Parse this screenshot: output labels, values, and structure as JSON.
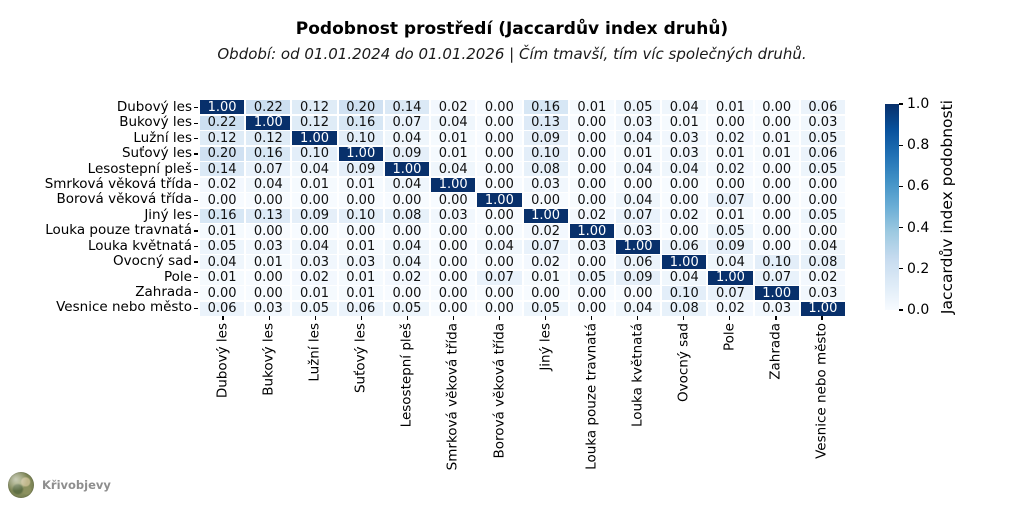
{
  "title": "Podobnost prostředí (Jaccardův index druhů)",
  "subtitle": "Období: od 01.01.2024 do 01.01.2026  |  Čím tmavší, tím víc společných druhů.",
  "watermark": "Křivobjevy",
  "chart_data": {
    "type": "heatmap",
    "title": "Podobnost prostředí (Jaccardův index druhů)",
    "subtitle": "Období: od 01.01.2024 do 01.01.2026 | Čím tmavší, tím víc společných druhů.",
    "categories": [
      "Dubový les",
      "Bukový les",
      "Lužní les",
      "Suťový les",
      "Lesostepní pleš",
      "Smrková věková třída",
      "Borová věková třída",
      "Jiný les",
      "Louka pouze travnatá",
      "Louka květnatá",
      "Ovocný sad",
      "Pole",
      "Zahrada",
      "Vesnice nebo město"
    ],
    "matrix": [
      [
        1.0,
        0.22,
        0.12,
        0.2,
        0.14,
        0.02,
        0.0,
        0.16,
        0.01,
        0.05,
        0.04,
        0.01,
        0.0,
        0.06
      ],
      [
        0.22,
        1.0,
        0.12,
        0.16,
        0.07,
        0.04,
        0.0,
        0.13,
        0.0,
        0.03,
        0.01,
        0.0,
        0.0,
        0.03
      ],
      [
        0.12,
        0.12,
        1.0,
        0.1,
        0.04,
        0.01,
        0.0,
        0.09,
        0.0,
        0.04,
        0.03,
        0.02,
        0.01,
        0.05
      ],
      [
        0.2,
        0.16,
        0.1,
        1.0,
        0.09,
        0.01,
        0.0,
        0.1,
        0.0,
        0.01,
        0.03,
        0.01,
        0.01,
        0.06
      ],
      [
        0.14,
        0.07,
        0.04,
        0.09,
        1.0,
        0.04,
        0.0,
        0.08,
        0.0,
        0.04,
        0.04,
        0.02,
        0.0,
        0.05
      ],
      [
        0.02,
        0.04,
        0.01,
        0.01,
        0.04,
        1.0,
        0.0,
        0.03,
        0.0,
        0.0,
        0.0,
        0.0,
        0.0,
        0.0
      ],
      [
        0.0,
        0.0,
        0.0,
        0.0,
        0.0,
        0.0,
        1.0,
        0.0,
        0.0,
        0.04,
        0.0,
        0.07,
        0.0,
        0.0
      ],
      [
        0.16,
        0.13,
        0.09,
        0.1,
        0.08,
        0.03,
        0.0,
        1.0,
        0.02,
        0.07,
        0.02,
        0.01,
        0.0,
        0.05
      ],
      [
        0.01,
        0.0,
        0.0,
        0.0,
        0.0,
        0.0,
        0.0,
        0.02,
        1.0,
        0.03,
        0.0,
        0.05,
        0.0,
        0.0
      ],
      [
        0.05,
        0.03,
        0.04,
        0.01,
        0.04,
        0.0,
        0.04,
        0.07,
        0.03,
        1.0,
        0.06,
        0.09,
        0.0,
        0.04
      ],
      [
        0.04,
        0.01,
        0.03,
        0.03,
        0.04,
        0.0,
        0.0,
        0.02,
        0.0,
        0.06,
        1.0,
        0.04,
        0.1,
        0.08
      ],
      [
        0.01,
        0.0,
        0.02,
        0.01,
        0.02,
        0.0,
        0.07,
        0.01,
        0.05,
        0.09,
        0.04,
        1.0,
        0.07,
        0.02
      ],
      [
        0.0,
        0.0,
        0.01,
        0.01,
        0.0,
        0.0,
        0.0,
        0.0,
        0.0,
        0.0,
        0.1,
        0.07,
        1.0,
        0.03
      ],
      [
        0.06,
        0.03,
        0.05,
        0.06,
        0.05,
        0.0,
        0.0,
        0.05,
        0.0,
        0.04,
        0.08,
        0.02,
        0.03,
        1.0
      ]
    ],
    "value_format": "2-decimals",
    "vmin": 0.0,
    "vmax": 1.0,
    "colormap": {
      "name": "Blues",
      "stops": [
        "#f7fbff",
        "#deebf7",
        "#c6dbef",
        "#9ecae1",
        "#6baed6",
        "#4292c6",
        "#2171b5",
        "#08519c",
        "#08306b"
      ]
    },
    "cell_text_dark": "#111111",
    "cell_text_light": "#ffffff",
    "colorbar": {
      "label": "Jaccardův index podobnosti",
      "ticks": [
        1.0,
        0.8,
        0.6,
        0.4,
        0.2,
        0.0
      ],
      "tick_labels": [
        "1.0",
        "0.8",
        "0.6",
        "0.4",
        "0.2",
        "0.0"
      ]
    },
    "grid": false,
    "legend_position": "right-colorbar"
  }
}
